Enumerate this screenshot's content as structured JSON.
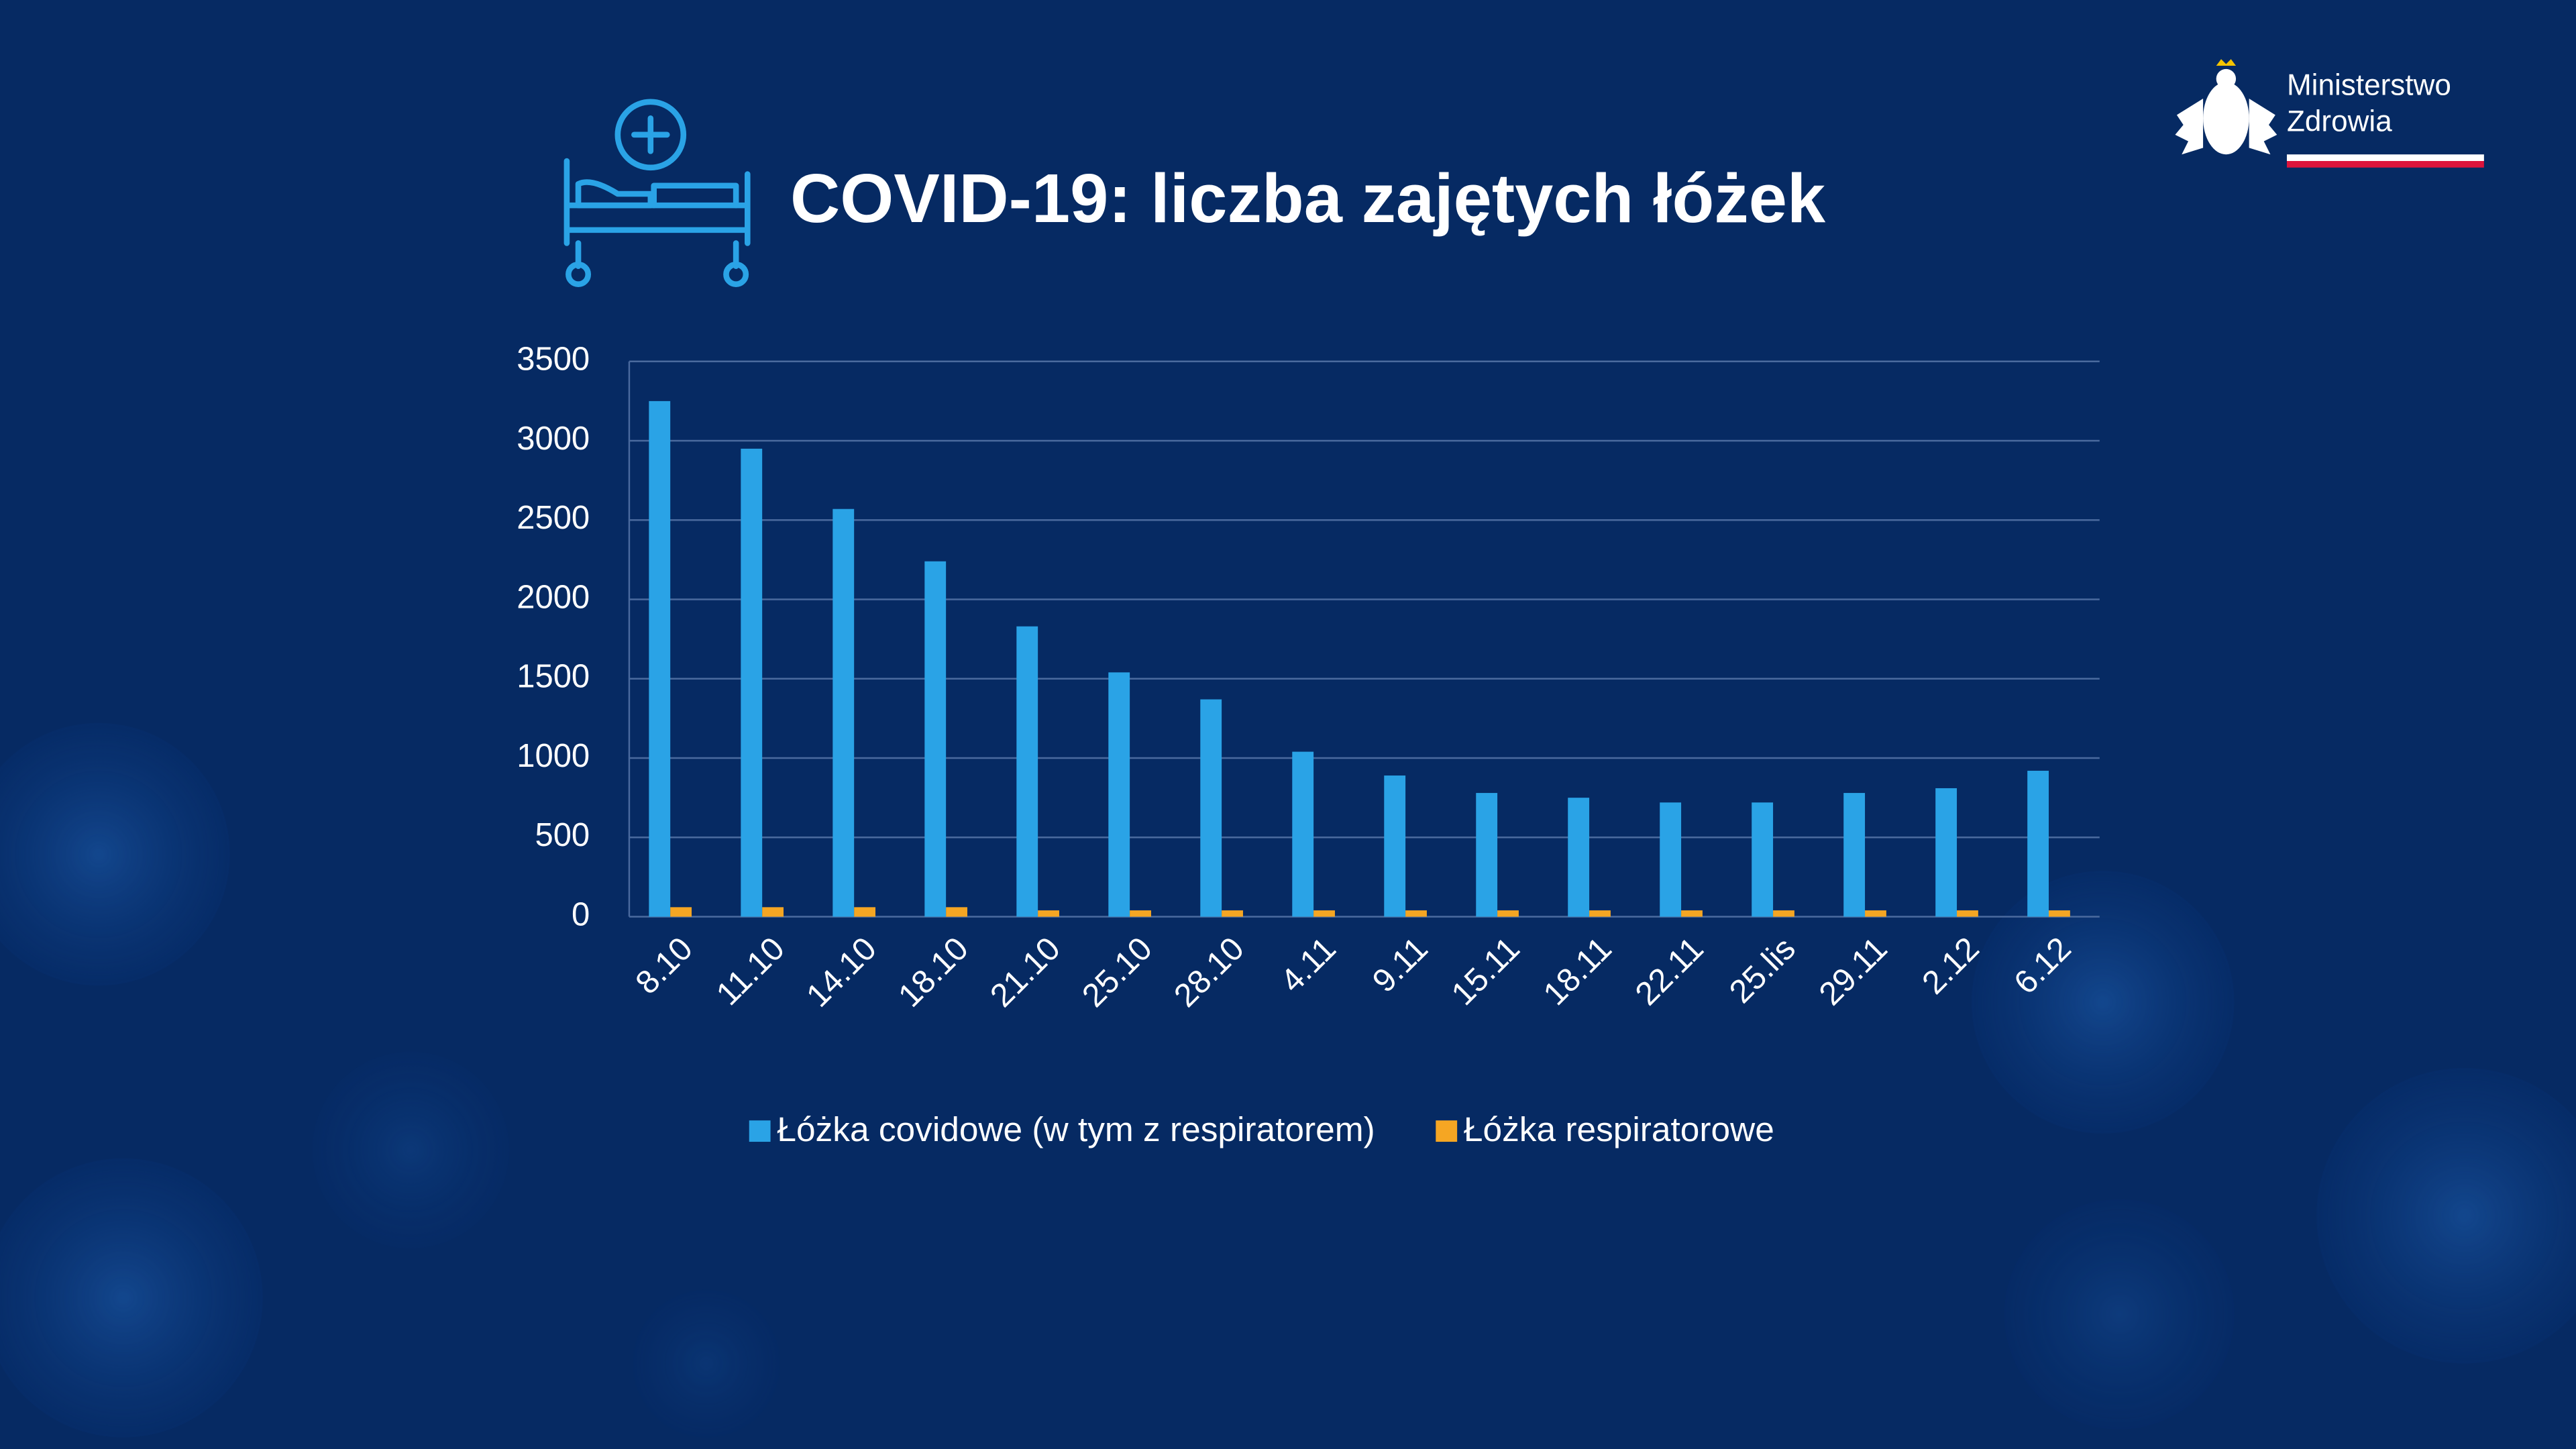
{
  "logo": {
    "line1": "Ministerstwo",
    "line2": "Zdrowia"
  },
  "chart_data": {
    "type": "bar",
    "title": "COVID-19: liczba zajętych łóżek",
    "categories": [
      "8.10",
      "11.10",
      "14.10",
      "18.10",
      "21.10",
      "25.10",
      "28.10",
      "4.11",
      "9.11",
      "15.11",
      "18.11",
      "22.11",
      "25.lis",
      "29.11",
      "2.12",
      "6.12"
    ],
    "series": [
      {
        "name": "Łóżka covidowe (w tym z respiratorem)",
        "color": "#2aa3e6",
        "values": [
          3250,
          2950,
          2570,
          2240,
          1830,
          1540,
          1370,
          1040,
          890,
          780,
          750,
          720,
          720,
          780,
          810,
          920
        ]
      },
      {
        "name": "Łóżka respiratorowe",
        "color": "#f5a623",
        "values": [
          60,
          60,
          60,
          60,
          40,
          40,
          40,
          40,
          40,
          40,
          40,
          40,
          40,
          40,
          40,
          40
        ]
      }
    ],
    "ylim": [
      0,
      3500
    ],
    "yticks": [
      0,
      500,
      1000,
      1500,
      2000,
      2500,
      3000,
      3500
    ],
    "grid": true,
    "legend": "bottom"
  }
}
